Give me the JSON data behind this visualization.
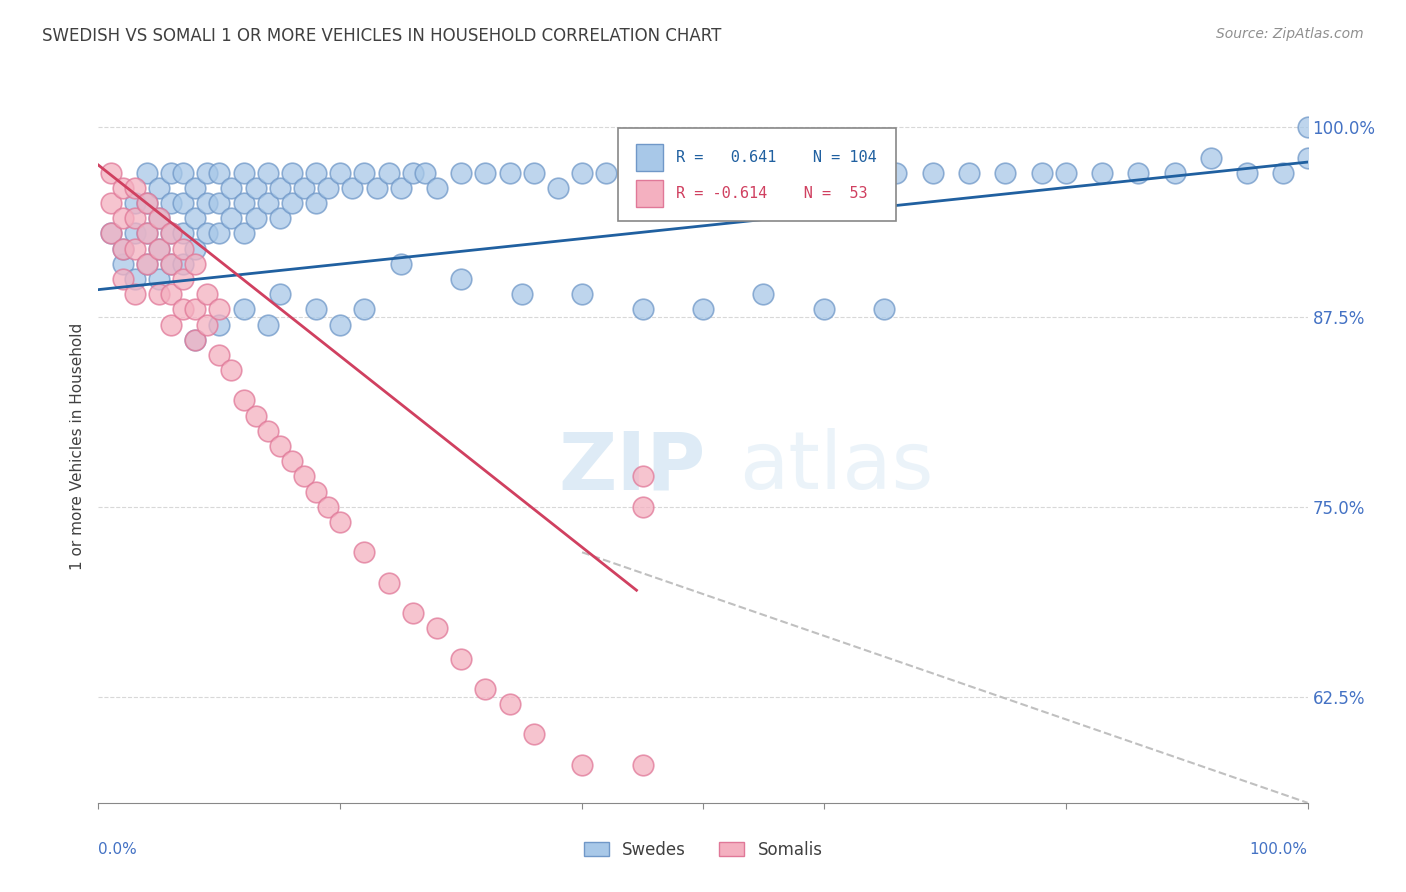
{
  "title": "SWEDISH VS SOMALI 1 OR MORE VEHICLES IN HOUSEHOLD CORRELATION CHART",
  "source": "Source: ZipAtlas.com",
  "ylabel": "1 or more Vehicles in Household",
  "ylim": [
    0.555,
    1.025
  ],
  "xlim": [
    0.0,
    1.0
  ],
  "yticks": [
    0.625,
    0.75,
    0.875,
    1.0
  ],
  "ytick_labels": [
    "62.5%",
    "75.0%",
    "87.5%",
    "100.0%"
  ],
  "legend_swedes": "Swedes",
  "legend_somalis": "Somalis",
  "blue_R": 0.641,
  "blue_N": 104,
  "pink_R": -0.614,
  "pink_N": 53,
  "blue_color": "#a8c8e8",
  "pink_color": "#f4b0c0",
  "blue_edge_color": "#7098c8",
  "pink_edge_color": "#e07898",
  "blue_line_color": "#2060a0",
  "pink_line_color": "#d04060",
  "dashed_line_color": "#c0c0c0",
  "watermark_color": "#daeaf8",
  "background_color": "#ffffff",
  "grid_color": "#d8d8d8",
  "title_color": "#404040",
  "source_color": "#909090",
  "axis_label_color": "#404040",
  "tick_label_color": "#4472c4",
  "blue_scatter_x": [
    0.01,
    0.02,
    0.02,
    0.03,
    0.03,
    0.03,
    0.04,
    0.04,
    0.04,
    0.04,
    0.05,
    0.05,
    0.05,
    0.05,
    0.06,
    0.06,
    0.06,
    0.06,
    0.07,
    0.07,
    0.07,
    0.07,
    0.08,
    0.08,
    0.08,
    0.09,
    0.09,
    0.09,
    0.1,
    0.1,
    0.1,
    0.11,
    0.11,
    0.12,
    0.12,
    0.12,
    0.13,
    0.13,
    0.14,
    0.14,
    0.15,
    0.15,
    0.16,
    0.16,
    0.17,
    0.18,
    0.18,
    0.19,
    0.2,
    0.21,
    0.22,
    0.23,
    0.24,
    0.25,
    0.26,
    0.27,
    0.28,
    0.3,
    0.32,
    0.34,
    0.36,
    0.38,
    0.4,
    0.42,
    0.44,
    0.46,
    0.48,
    0.5,
    0.52,
    0.55,
    0.58,
    0.6,
    0.63,
    0.66,
    0.69,
    0.72,
    0.75,
    0.78,
    0.8,
    0.83,
    0.86,
    0.89,
    0.92,
    0.95,
    0.98,
    1.0,
    0.15,
    0.18,
    0.2,
    0.22,
    0.08,
    0.1,
    0.12,
    0.14,
    0.25,
    0.3,
    0.35,
    0.4,
    0.45,
    0.5,
    0.55,
    0.6,
    0.65,
    1.0
  ],
  "blue_scatter_y": [
    0.93,
    0.91,
    0.92,
    0.95,
    0.93,
    0.9,
    0.97,
    0.95,
    0.93,
    0.91,
    0.96,
    0.94,
    0.92,
    0.9,
    0.97,
    0.95,
    0.93,
    0.91,
    0.97,
    0.95,
    0.93,
    0.91,
    0.96,
    0.94,
    0.92,
    0.97,
    0.95,
    0.93,
    0.97,
    0.95,
    0.93,
    0.96,
    0.94,
    0.97,
    0.95,
    0.93,
    0.96,
    0.94,
    0.97,
    0.95,
    0.96,
    0.94,
    0.97,
    0.95,
    0.96,
    0.97,
    0.95,
    0.96,
    0.97,
    0.96,
    0.97,
    0.96,
    0.97,
    0.96,
    0.97,
    0.97,
    0.96,
    0.97,
    0.97,
    0.97,
    0.97,
    0.96,
    0.97,
    0.97,
    0.96,
    0.97,
    0.96,
    0.97,
    0.96,
    0.97,
    0.97,
    0.97,
    0.97,
    0.97,
    0.97,
    0.97,
    0.97,
    0.97,
    0.97,
    0.97,
    0.97,
    0.97,
    0.98,
    0.97,
    0.97,
    0.98,
    0.89,
    0.88,
    0.87,
    0.88,
    0.86,
    0.87,
    0.88,
    0.87,
    0.91,
    0.9,
    0.89,
    0.89,
    0.88,
    0.88,
    0.89,
    0.88,
    0.88,
    1.0
  ],
  "pink_scatter_x": [
    0.01,
    0.01,
    0.01,
    0.02,
    0.02,
    0.02,
    0.02,
    0.03,
    0.03,
    0.03,
    0.03,
    0.04,
    0.04,
    0.04,
    0.05,
    0.05,
    0.05,
    0.06,
    0.06,
    0.06,
    0.06,
    0.07,
    0.07,
    0.07,
    0.08,
    0.08,
    0.08,
    0.09,
    0.09,
    0.1,
    0.1,
    0.11,
    0.12,
    0.13,
    0.14,
    0.15,
    0.16,
    0.17,
    0.18,
    0.19,
    0.2,
    0.22,
    0.24,
    0.26,
    0.28,
    0.3,
    0.32,
    0.34,
    0.36,
    0.4,
    0.45,
    0.45,
    0.45
  ],
  "pink_scatter_y": [
    0.97,
    0.95,
    0.93,
    0.96,
    0.94,
    0.92,
    0.9,
    0.96,
    0.94,
    0.92,
    0.89,
    0.95,
    0.93,
    0.91,
    0.94,
    0.92,
    0.89,
    0.93,
    0.91,
    0.89,
    0.87,
    0.92,
    0.9,
    0.88,
    0.91,
    0.88,
    0.86,
    0.89,
    0.87,
    0.88,
    0.85,
    0.84,
    0.82,
    0.81,
    0.8,
    0.79,
    0.78,
    0.77,
    0.76,
    0.75,
    0.74,
    0.72,
    0.7,
    0.68,
    0.67,
    0.65,
    0.63,
    0.62,
    0.6,
    0.58,
    0.75,
    0.77,
    0.58
  ],
  "blue_trend_x": [
    0.0,
    1.0
  ],
  "blue_trend_y": [
    0.893,
    0.977
  ],
  "pink_trend_x": [
    0.0,
    0.445
  ],
  "pink_trend_y": [
    0.975,
    0.695
  ],
  "dashed_trend_x": [
    0.4,
    1.0
  ],
  "dashed_trend_y": [
    0.72,
    0.555
  ]
}
